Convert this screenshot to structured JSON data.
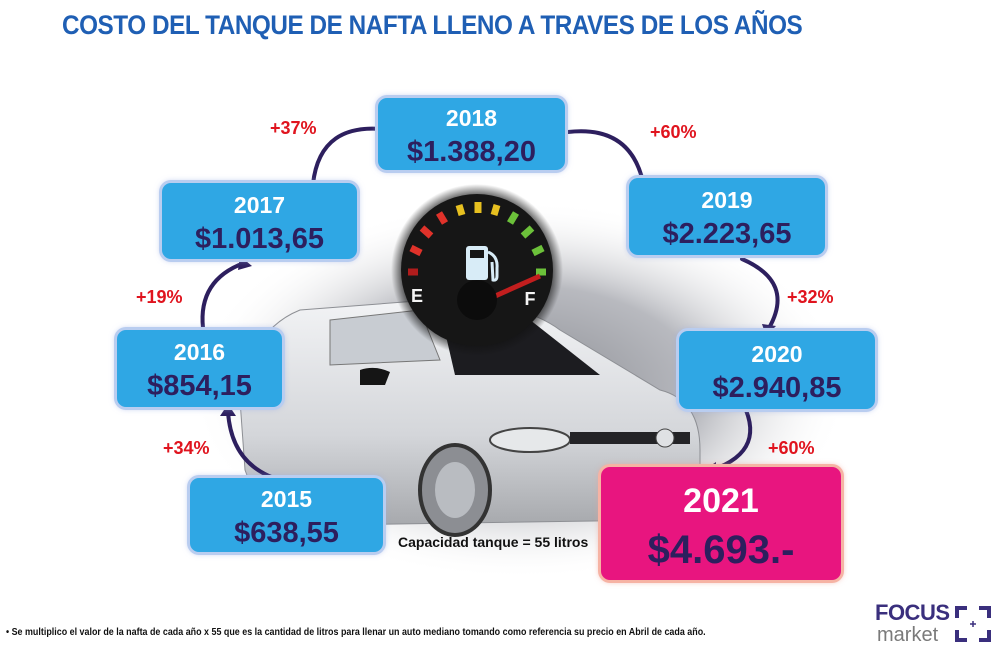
{
  "title": "COSTO DEL TANQUE DE NAFTA LLENO A TRAVES DE LOS AÑOS",
  "colors": {
    "title": "#1f5fb4",
    "box": "#2fa7e4",
    "highlight_box": "#e8157f",
    "value_text": "#2d1f5e",
    "percent_text": "#e0141e",
    "arrow": "#2d1f5e"
  },
  "years": [
    {
      "year": "2015",
      "value": "$638,55"
    },
    {
      "year": "2016",
      "value": "$854,15"
    },
    {
      "year": "2017",
      "value": "$1.013,65"
    },
    {
      "year": "2018",
      "value": "$1.388,20"
    },
    {
      "year": "2019",
      "value": "$2.223,65"
    },
    {
      "year": "2020",
      "value": "$2.940,85"
    },
    {
      "year": "2021",
      "value": "$4.693.-"
    }
  ],
  "increases": [
    "+34%",
    "+19%",
    "+37%",
    "+60%",
    "+32%",
    "+60%"
  ],
  "gauge": {
    "empty_label": "E",
    "full_label": "F",
    "icon": "fuel-pump-icon"
  },
  "capacity_note": "Capacidad tanque = 55 litros",
  "footnote": "• Se multiplico el valor de la nafta de  cada año x 55 que es la cantidad de litros  para llenar un auto mediano tomando como referencia su precio en Abril de cada año.",
  "logo": {
    "line1": "FOCUS",
    "line2": "market"
  }
}
